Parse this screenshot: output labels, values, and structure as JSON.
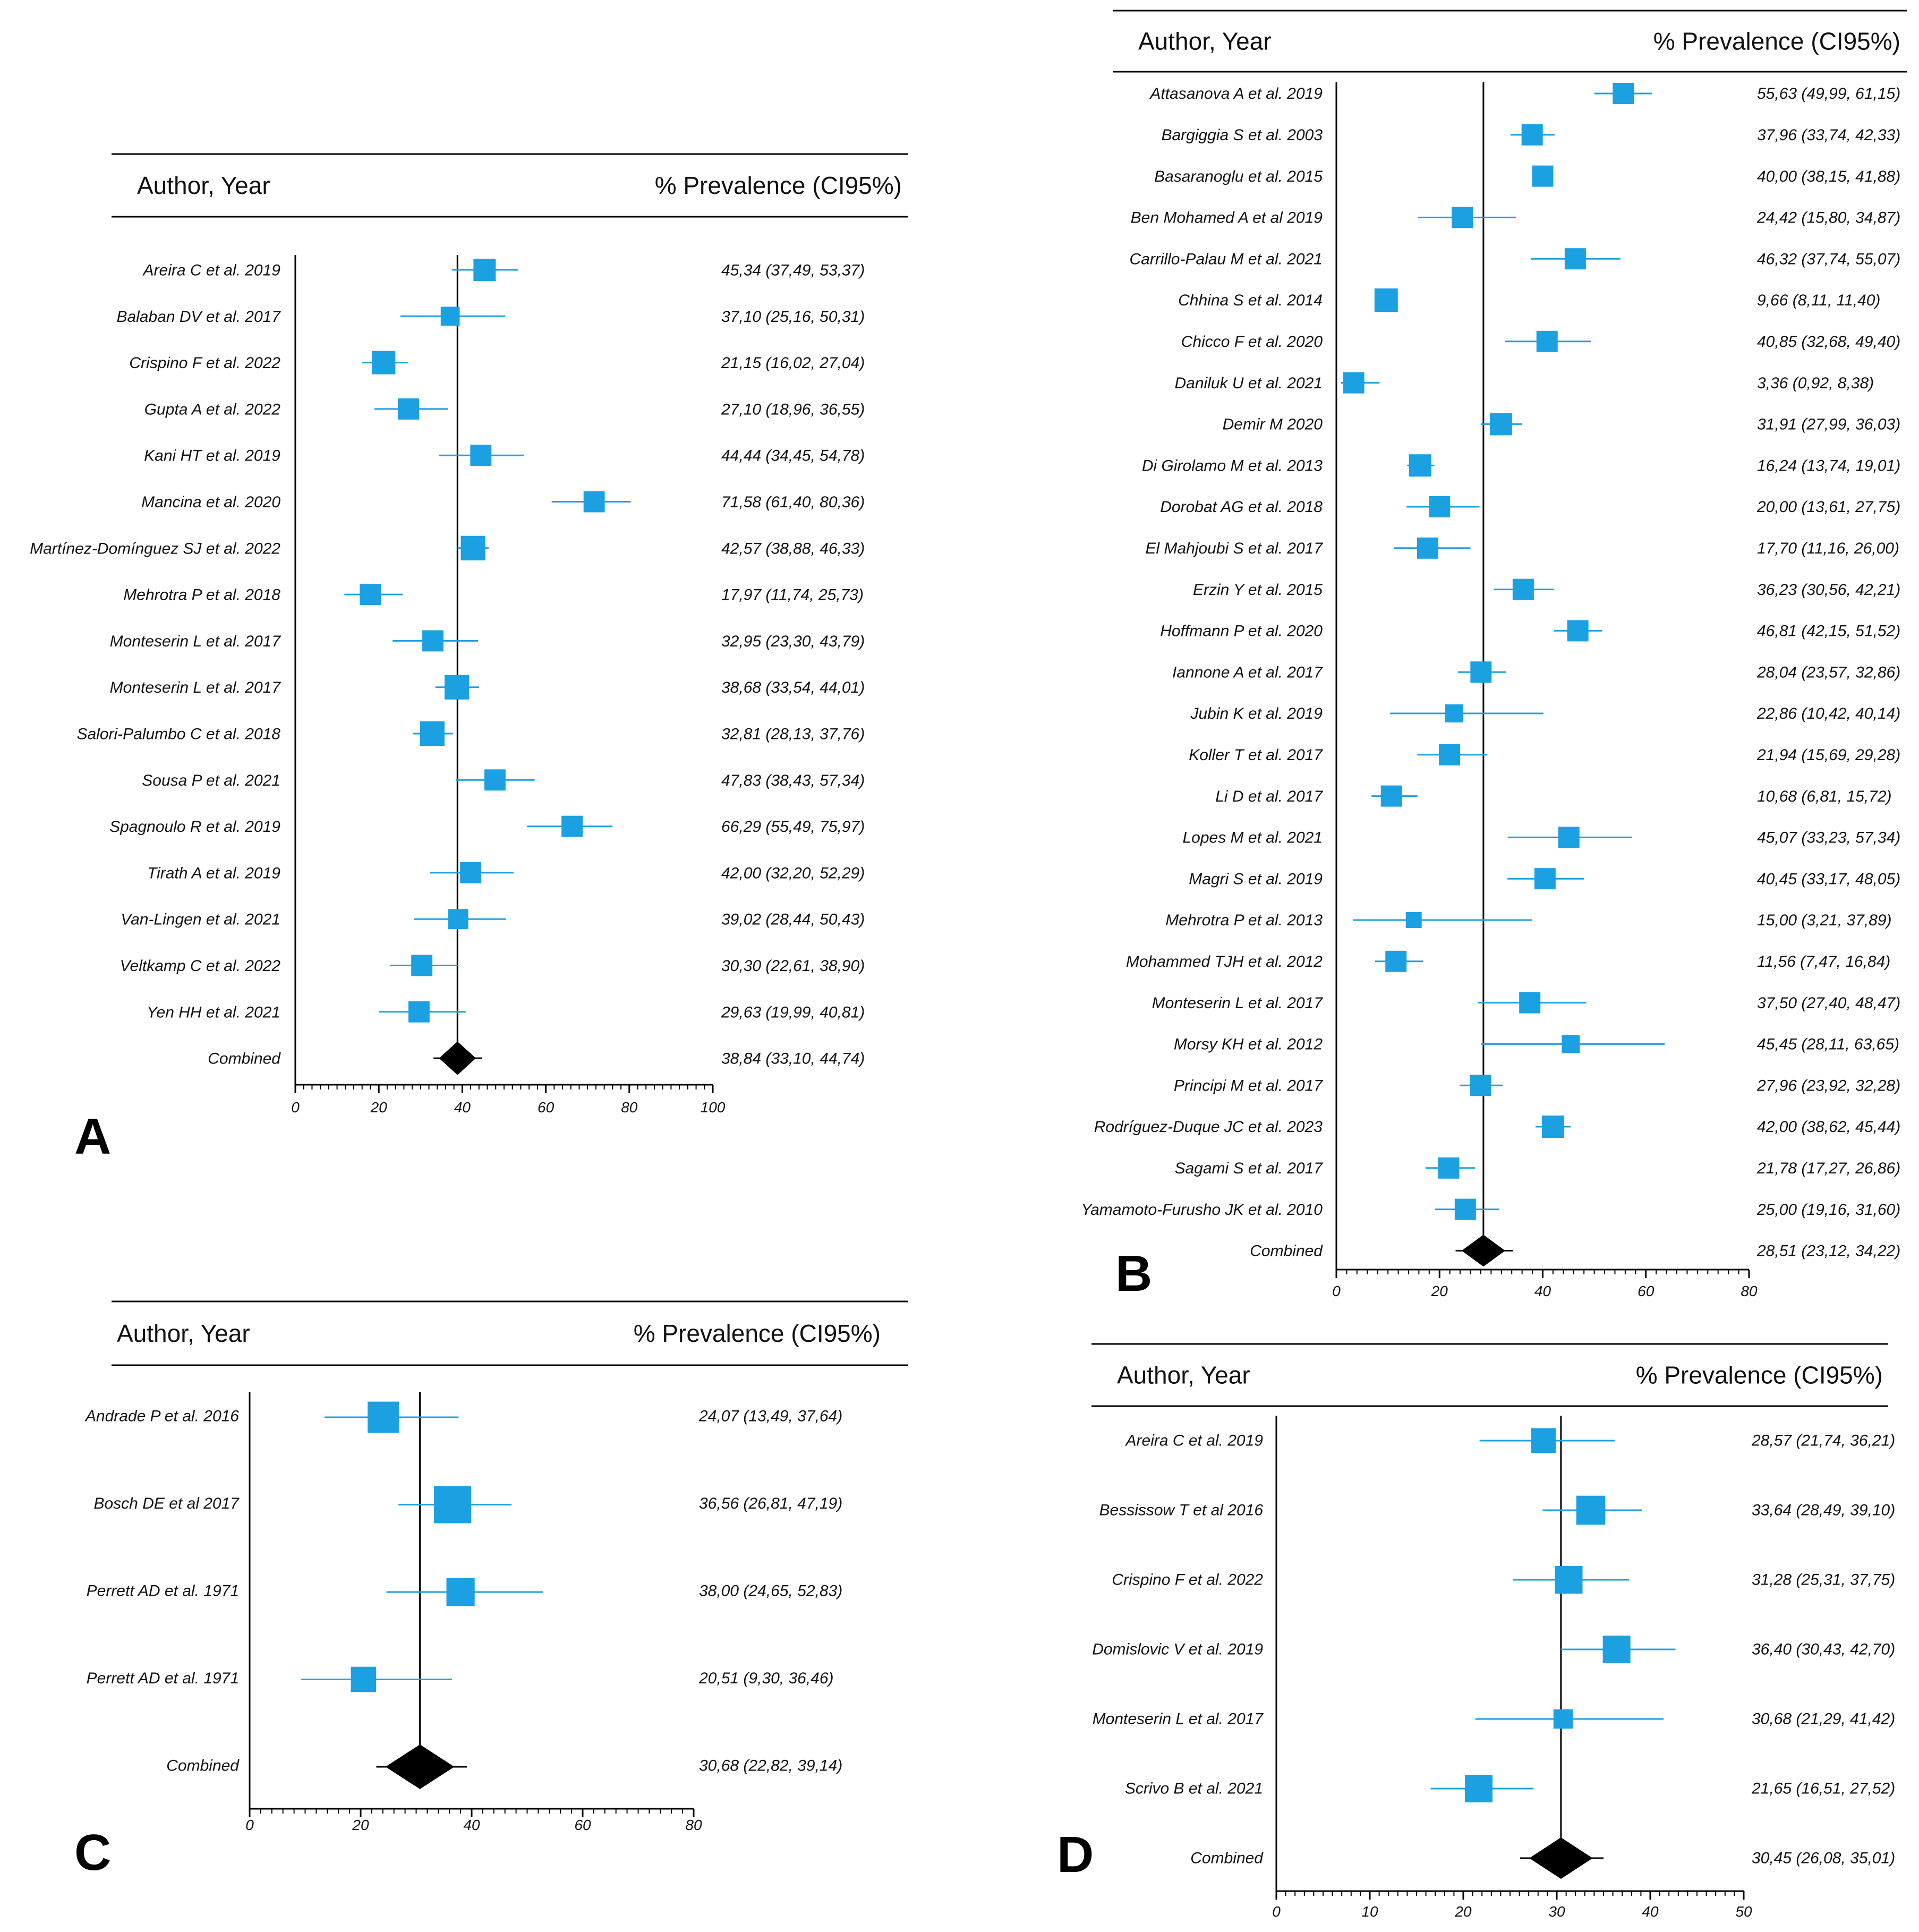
{
  "figure": {
    "header_author": "Author, Year",
    "header_prevalence": "% Prevalence (CI95%)",
    "colors": {
      "marker": "#1ba1e2",
      "combined": "#000000",
      "axis": "#000000"
    }
  },
  "chart_data": [
    {
      "panel": "A",
      "type": "forest",
      "xlim": [
        0,
        100
      ],
      "x_ticks": [
        0,
        20,
        40,
        60,
        80,
        100
      ],
      "reference_line": 38.84,
      "studies": [
        {
          "label": "Areira C et al. 2019",
          "est": 45.34,
          "lo": 37.49,
          "hi": 53.37,
          "ci_text": "45,34 (37,49, 53,37)",
          "weight": 1.0
        },
        {
          "label": "Balaban DV et al. 2017",
          "est": 37.1,
          "lo": 25.16,
          "hi": 50.31,
          "ci_text": "37,10 (25,16, 50,31)",
          "weight": 0.85
        },
        {
          "label": "Crispino F et al. 2022",
          "est": 21.15,
          "lo": 16.02,
          "hi": 27.04,
          "ci_text": "21,15 (16,02, 27,04)",
          "weight": 1.05
        },
        {
          "label": "Gupta A et al. 2022",
          "est": 27.1,
          "lo": 18.96,
          "hi": 36.55,
          "ci_text": "27,10 (18,96, 36,55)",
          "weight": 0.95
        },
        {
          "label": "Kani HT et al. 2019",
          "est": 44.44,
          "lo": 34.45,
          "hi": 54.78,
          "ci_text": "44,44 (34,45, 54,78)",
          "weight": 0.95
        },
        {
          "label": "Mancina et al. 2020",
          "est": 71.58,
          "lo": 61.4,
          "hi": 80.36,
          "ci_text": "71,58 (61,40, 80,36)",
          "weight": 0.95
        },
        {
          "label": "Martínez-Domínguez SJ et al. 2022",
          "est": 42.57,
          "lo": 38.88,
          "hi": 46.33,
          "ci_text": "42,57 (38,88, 46,33)",
          "weight": 1.1
        },
        {
          "label": "Mehrotra P et al. 2018",
          "est": 17.97,
          "lo": 11.74,
          "hi": 25.73,
          "ci_text": "17,97 (11,74, 25,73)",
          "weight": 0.95
        },
        {
          "label": "Monteserin L et al. 2017",
          "est": 32.95,
          "lo": 23.3,
          "hi": 43.79,
          "ci_text": "32,95 (23,30, 43,79)",
          "weight": 0.95
        },
        {
          "label": "Monteserin L et al. 2017",
          "est": 38.68,
          "lo": 33.54,
          "hi": 44.01,
          "ci_text": "38,68 (33,54, 44,01)",
          "weight": 1.1
        },
        {
          "label": "Salori-Palumbo C et al. 2018",
          "est": 32.81,
          "lo": 28.13,
          "hi": 37.76,
          "ci_text": "32,81 (28,13, 37,76)",
          "weight": 1.1
        },
        {
          "label": "Sousa P et al. 2021",
          "est": 47.83,
          "lo": 38.43,
          "hi": 57.34,
          "ci_text": "47,83 (38,43, 57,34)",
          "weight": 0.95
        },
        {
          "label": "Spagnoulo R et al. 2019",
          "est": 66.29,
          "lo": 55.49,
          "hi": 75.97,
          "ci_text": "66,29 (55,49, 75,97)",
          "weight": 0.95
        },
        {
          "label": "Tirath A et al. 2019",
          "est": 42.0,
          "lo": 32.2,
          "hi": 52.29,
          "ci_text": "42,00 (32,20, 52,29)",
          "weight": 0.95
        },
        {
          "label": "Van-Lingen et al. 2021",
          "est": 39.02,
          "lo": 28.44,
          "hi": 50.43,
          "ci_text": "39,02 (28,44, 50,43)",
          "weight": 0.9
        },
        {
          "label": "Veltkamp C et al. 2022",
          "est": 30.3,
          "lo": 22.61,
          "hi": 38.9,
          "ci_text": "30,30 (22,61, 38,90)",
          "weight": 0.95
        },
        {
          "label": "Yen HH et al. 2021",
          "est": 29.63,
          "lo": 19.99,
          "hi": 40.81,
          "ci_text": "29,63 (19,99, 40,81)",
          "weight": 0.95
        }
      ],
      "combined": {
        "label": "Combined",
        "est": 38.84,
        "lo": 33.1,
        "hi": 44.74,
        "ci_text": "38,84 (33,10, 44,74)"
      }
    },
    {
      "panel": "B",
      "type": "forest",
      "xlim": [
        0,
        80
      ],
      "x_ticks": [
        0,
        20,
        40,
        60,
        80
      ],
      "reference_line": 28.51,
      "studies": [
        {
          "label": "Attasanova A et al. 2019",
          "est": 55.63,
          "lo": 49.99,
          "hi": 61.15,
          "ci_text": "55,63 (49,99, 61,15)",
          "weight": 1.0
        },
        {
          "label": "Bargiggia S et al. 2003",
          "est": 37.96,
          "lo": 33.74,
          "hi": 42.33,
          "ci_text": "37,96 (33,74, 42,33)",
          "weight": 1.0
        },
        {
          "label": "Basaranoglu et al. 2015",
          "est": 40.0,
          "lo": 38.15,
          "hi": 41.88,
          "ci_text": "40,00 (38,15, 41,88)",
          "weight": 1.0
        },
        {
          "label": "Ben Mohamed A et al 2019",
          "est": 24.42,
          "lo": 15.8,
          "hi": 34.87,
          "ci_text": "24,42 (15,80, 34,87)",
          "weight": 1.0
        },
        {
          "label": "Carrillo-Palau M et al. 2021",
          "est": 46.32,
          "lo": 37.74,
          "hi": 55.07,
          "ci_text": "46,32 (37,74, 55,07)",
          "weight": 1.0
        },
        {
          "label": "Chhina S et al. 2014",
          "est": 9.66,
          "lo": 8.11,
          "hi": 11.4,
          "ci_text": "9,66 (8,11, 11,40)",
          "weight": 1.1
        },
        {
          "label": "Chicco F et al. 2020",
          "est": 40.85,
          "lo": 32.68,
          "hi": 49.4,
          "ci_text": "40,85 (32,68, 49,40)",
          "weight": 1.0
        },
        {
          "label": "Daniluk U et al. 2021",
          "est": 3.36,
          "lo": 0.92,
          "hi": 8.38,
          "ci_text": "3,36 (0,92, 8,38)",
          "weight": 1.0
        },
        {
          "label": "Demir M  2020",
          "est": 31.91,
          "lo": 27.99,
          "hi": 36.03,
          "ci_text": "31,91 (27,99, 36,03)",
          "weight": 1.05
        },
        {
          "label": "Di Girolamo M et al. 2013",
          "est": 16.24,
          "lo": 13.74,
          "hi": 19.01,
          "ci_text": "16,24 (13,74, 19,01)",
          "weight": 1.05
        },
        {
          "label": "Dorobat AG et al. 2018",
          "est": 20.0,
          "lo": 13.61,
          "hi": 27.75,
          "ci_text": "20,00 (13,61, 27,75)",
          "weight": 1.0
        },
        {
          "label": "El Mahjoubi S et al. 2017",
          "est": 17.7,
          "lo": 11.16,
          "hi": 26.0,
          "ci_text": "17,70 (11,16, 26,00)",
          "weight": 1.0
        },
        {
          "label": "Erzin Y et al. 2015",
          "est": 36.23,
          "lo": 30.56,
          "hi": 42.21,
          "ci_text": "36,23 (30,56, 42,21)",
          "weight": 1.0
        },
        {
          "label": "Hoffmann P et al. 2020",
          "est": 46.81,
          "lo": 42.15,
          "hi": 51.52,
          "ci_text": "46,81 (42,15, 51,52)",
          "weight": 1.0
        },
        {
          "label": "Iannone A et al. 2017",
          "est": 28.04,
          "lo": 23.57,
          "hi": 32.86,
          "ci_text": "28,04 (23,57, 32,86)",
          "weight": 1.0
        },
        {
          "label": "Jubin K et al. 2019",
          "est": 22.86,
          "lo": 10.42,
          "hi": 40.14,
          "ci_text": "22,86 (10,42, 40,14)",
          "weight": 0.85
        },
        {
          "label": "Koller T et al. 2017",
          "est": 21.94,
          "lo": 15.69,
          "hi": 29.28,
          "ci_text": "21,94 (15,69, 29,28)",
          "weight": 1.0
        },
        {
          "label": "Li D et al. 2017",
          "est": 10.68,
          "lo": 6.81,
          "hi": 15.72,
          "ci_text": "10,68 (6,81, 15,72)",
          "weight": 1.0
        },
        {
          "label": "Lopes M et al. 2021",
          "est": 45.07,
          "lo": 33.23,
          "hi": 57.34,
          "ci_text": "45,07 (33,23, 57,34)",
          "weight": 1.0
        },
        {
          "label": "Magri S et al. 2019",
          "est": 40.45,
          "lo": 33.17,
          "hi": 48.05,
          "ci_text": "40,45 (33,17, 48,05)",
          "weight": 1.0
        },
        {
          "label": "Mehrotra P et al. 2013",
          "est": 15.0,
          "lo": 3.21,
          "hi": 37.89,
          "ci_text": "15,00 (3,21, 37,89)",
          "weight": 0.75
        },
        {
          "label": "Mohammed TJH et al. 2012",
          "est": 11.56,
          "lo": 7.47,
          "hi": 16.84,
          "ci_text": "11,56 (7,47, 16,84)",
          "weight": 1.0
        },
        {
          "label": "Monteserin L et al. 2017",
          "est": 37.5,
          "lo": 27.4,
          "hi": 48.47,
          "ci_text": "37,50 (27,40, 48,47)",
          "weight": 1.0
        },
        {
          "label": "Morsy KH et al. 2012",
          "est": 45.45,
          "lo": 28.11,
          "hi": 63.65,
          "ci_text": "45,45 (28,11, 63,65)",
          "weight": 0.85
        },
        {
          "label": "Principi M et al. 2017",
          "est": 27.96,
          "lo": 23.92,
          "hi": 32.28,
          "ci_text": "27,96 (23,92, 32,28)",
          "weight": 1.0
        },
        {
          "label": "Rodríguez-Duque JC et al. 2023",
          "est": 42.0,
          "lo": 38.62,
          "hi": 45.44,
          "ci_text": "42,00 (38,62, 45,44)",
          "weight": 1.05
        },
        {
          "label": "Sagami S et al. 2017",
          "est": 21.78,
          "lo": 17.27,
          "hi": 26.86,
          "ci_text": "21,78 (17,27, 26,86)",
          "weight": 1.0
        },
        {
          "label": "Yamamoto-Furusho JK et al. 2010",
          "est": 25.0,
          "lo": 19.16,
          "hi": 31.6,
          "ci_text": "25,00 (19,16, 31,60)",
          "weight": 1.0
        }
      ],
      "combined": {
        "label": "Combined",
        "est": 28.51,
        "lo": 23.12,
        "hi": 34.22,
        "ci_text": "28,51 (23,12, 34,22)"
      }
    },
    {
      "panel": "C",
      "type": "forest",
      "xlim": [
        0,
        80
      ],
      "x_ticks": [
        0,
        20,
        40,
        60,
        80
      ],
      "reference_line": 30.68,
      "studies": [
        {
          "label": "Andrade P et al. 2016",
          "est": 24.07,
          "lo": 13.49,
          "hi": 37.64,
          "ci_text": "24,07 (13,49, 37,64)",
          "weight": 1.05
        },
        {
          "label": "Bosch DE et al 2017",
          "est": 36.56,
          "lo": 26.81,
          "hi": 47.19,
          "ci_text": "36,56 (26,81, 47,19)",
          "weight": 1.25
        },
        {
          "label": "Perrett AD et al. 1971",
          "est": 38.0,
          "lo": 24.65,
          "hi": 52.83,
          "ci_text": "38,00 (24,65, 52,83)",
          "weight": 0.95
        },
        {
          "label": "Perrett AD et al. 1971",
          "est": 20.51,
          "lo": 9.3,
          "hi": 36.46,
          "ci_text": "20,51 (9,30, 36,46)",
          "weight": 0.85
        }
      ],
      "combined": {
        "label": "Combined",
        "est": 30.68,
        "lo": 22.82,
        "hi": 39.14,
        "ci_text": "30,68 (22,82, 39,14)"
      }
    },
    {
      "panel": "D",
      "type": "forest",
      "xlim": [
        0,
        50
      ],
      "x_ticks": [
        0,
        10,
        20,
        30,
        40,
        50
      ],
      "reference_line": 30.45,
      "studies": [
        {
          "label": "Areira C et al. 2019",
          "est": 28.57,
          "lo": 21.74,
          "hi": 36.21,
          "ci_text": "28,57 (21,74, 36,21)",
          "weight": 0.9
        },
        {
          "label": "Bessissow T et al 2016",
          "est": 33.64,
          "lo": 28.49,
          "hi": 39.1,
          "ci_text": "33,64 (28,49, 39,10)",
          "weight": 1.05
        },
        {
          "label": "Crispino F et al. 2022",
          "est": 31.28,
          "lo": 25.31,
          "hi": 37.75,
          "ci_text": "31,28 (25,31, 37,75)",
          "weight": 1.0
        },
        {
          "label": "Domislovic V et al. 2019",
          "est": 36.4,
          "lo": 30.43,
          "hi": 42.7,
          "ci_text": "36,40 (30,43, 42,70)",
          "weight": 1.0
        },
        {
          "label": "Monteserin L et al. 2017",
          "est": 30.68,
          "lo": 21.29,
          "hi": 41.42,
          "ci_text": "30,68 (21,29, 41,42)",
          "weight": 0.7
        },
        {
          "label": "Scrivo B et al. 2021",
          "est": 21.65,
          "lo": 16.51,
          "hi": 27.52,
          "ci_text": "21,65 (16,51, 27,52)",
          "weight": 1.0
        }
      ],
      "combined": {
        "label": "Combined",
        "est": 30.45,
        "lo": 26.08,
        "hi": 35.01,
        "ci_text": "30,45 (26,08, 35,01)"
      }
    }
  ]
}
